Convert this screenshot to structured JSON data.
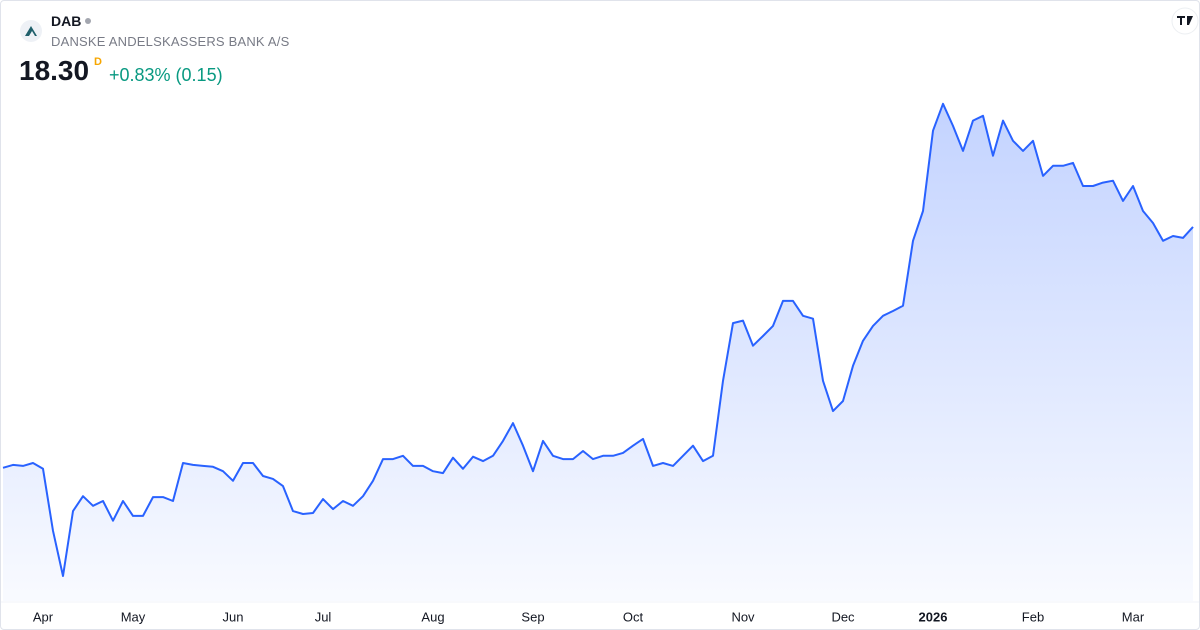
{
  "header": {
    "symbol": "DAB",
    "name": "DANSKE ANDELSKASSERS BANK A/S",
    "price": "18.30",
    "marker": "D",
    "change": "+0.83% (0.15)"
  },
  "chart_data": {
    "type": "area",
    "color": "#2962ff",
    "ylim": [
      10,
      21.5
    ],
    "categories": [
      null,
      null,
      null,
      null,
      "Apr",
      null,
      null,
      null,
      null,
      null,
      null,
      null,
      null,
      "May",
      null,
      null,
      null,
      null,
      null,
      null,
      null,
      null,
      null,
      "Jun",
      null,
      null,
      null,
      null,
      null,
      null,
      null,
      null,
      "Jul",
      null,
      null,
      null,
      null,
      null,
      null,
      null,
      null,
      null,
      null,
      "Aug",
      null,
      null,
      null,
      null,
      null,
      null,
      null,
      null,
      null,
      "Sep",
      null,
      null,
      null,
      null,
      null,
      null,
      null,
      null,
      null,
      "Oct",
      null,
      null,
      null,
      null,
      null,
      null,
      null,
      null,
      null,
      null,
      "Nov",
      null,
      null,
      null,
      null,
      null,
      null,
      null,
      null,
      null,
      "Dec",
      null,
      null,
      null,
      null,
      null,
      null,
      null,
      null,
      "2026",
      null,
      null,
      null,
      null,
      null,
      null,
      null,
      null,
      null,
      "Feb",
      null,
      null,
      null,
      null,
      null,
      null,
      null,
      null,
      null,
      "Mar",
      null,
      null,
      null,
      null,
      null,
      null
    ],
    "values": [
      13.29,
      13.35,
      13.33,
      13.39,
      13.27,
      11.98,
      11.04,
      12.39,
      12.7,
      12.5,
      12.6,
      12.19,
      12.6,
      12.29,
      12.29,
      12.68,
      12.68,
      12.6,
      13.39,
      13.35,
      13.33,
      13.31,
      13.22,
      13.02,
      13.39,
      13.39,
      13.12,
      13.06,
      12.91,
      12.39,
      12.33,
      12.35,
      12.64,
      12.43,
      12.6,
      12.5,
      12.7,
      13.02,
      13.47,
      13.47,
      13.54,
      13.33,
      13.33,
      13.22,
      13.18,
      13.5,
      13.27,
      13.52,
      13.43,
      13.54,
      13.85,
      14.22,
      13.75,
      13.22,
      13.85,
      13.54,
      13.47,
      13.47,
      13.64,
      13.47,
      13.54,
      13.54,
      13.6,
      13.75,
      13.89,
      13.33,
      13.39,
      13.33,
      13.54,
      13.75,
      13.43,
      13.54,
      15.1,
      16.3,
      16.35,
      15.83,
      16.03,
      16.24,
      16.76,
      16.76,
      16.45,
      16.39,
      15.1,
      14.47,
      14.68,
      15.41,
      15.93,
      16.24,
      16.45,
      16.55,
      16.66,
      18.01,
      18.63,
      20.3,
      20.86,
      20.4,
      19.88,
      20.51,
      20.61,
      19.78,
      20.51,
      20.09,
      19.88,
      20.09,
      19.36,
      19.57,
      19.57,
      19.63,
      19.15,
      19.15,
      19.22,
      19.26,
      18.84,
      19.15,
      18.63,
      18.38,
      18.01,
      18.11,
      18.07,
      18.3
    ]
  }
}
